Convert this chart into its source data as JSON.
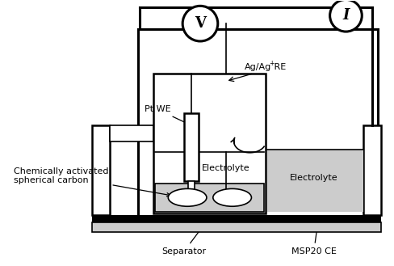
{
  "bg_color": "#ffffff",
  "line_color": "#000000",
  "gray_fill": "#cccccc",
  "labels": {
    "V": "V",
    "I": "I",
    "pt_we": "Pt WE",
    "ag_re": "Ag/Ag",
    "ag_re_sup": "+",
    "ag_re_end": " RE",
    "electrolyte_inner": "Electrolyte",
    "electrolyte_outer": "Electrolyte",
    "separator": "Separator",
    "msp20": "MSP20 CE",
    "carbon": "Chemically activated\nspherical carbon"
  },
  "fig_width": 4.89,
  "fig_height": 3.29,
  "dpi": 100
}
